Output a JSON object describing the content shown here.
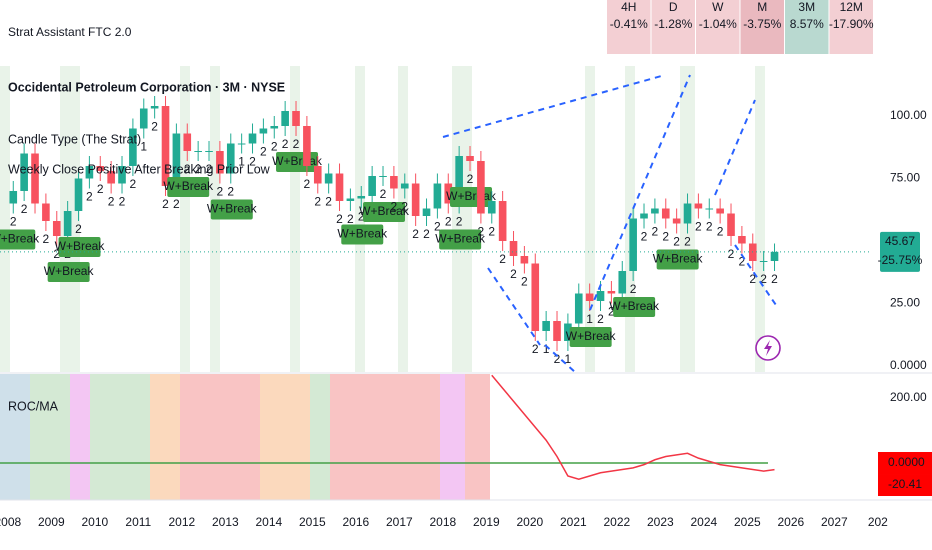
{
  "header": {
    "title": "Strat Assistant FTC 2.0"
  },
  "timeframes": [
    {
      "label": "4H",
      "value": "-0.41%",
      "color": "#f3cfd3"
    },
    {
      "label": "D",
      "value": "-1.28%",
      "color": "#f3cfd3"
    },
    {
      "label": "W",
      "value": "-1.04%",
      "color": "#f3cfd3"
    },
    {
      "label": "M",
      "value": "-3.75%",
      "color": "#eab9bf"
    },
    {
      "label": "3M",
      "value": "8.57%",
      "color": "#b9d9d0"
    },
    {
      "label": "12M",
      "value": "-17.90%",
      "color": "#f3cfd3"
    }
  ],
  "chart_data": {
    "type": "candlestick",
    "title": "Occidental Petroleum Corporation · 3M · NYSE",
    "legend": [
      "Candle Type (The Strat)",
      "Weekly Close Positive After Breaking Prior Low"
    ],
    "up_color": "#22ab94",
    "down_color": "#f7525f",
    "x": [
      2008,
      2008.25,
      2008.5,
      2008.75,
      2009,
      2009.25,
      2009.5,
      2009.75,
      2010,
      2010.25,
      2010.5,
      2010.75,
      2011,
      2011.25,
      2011.5,
      2011.75,
      2012,
      2012.25,
      2012.5,
      2012.75,
      2013,
      2013.25,
      2013.5,
      2013.75,
      2014,
      2014.25,
      2014.5,
      2014.75,
      2015,
      2015.25,
      2015.5,
      2015.75,
      2016,
      2016.25,
      2016.5,
      2016.75,
      2017,
      2017.25,
      2017.5,
      2017.75,
      2018,
      2018.25,
      2018.5,
      2018.75,
      2019,
      2019.25,
      2019.5,
      2019.75,
      2020,
      2020.25,
      2020.5,
      2020.75,
      2021,
      2021.25,
      2021.5,
      2021.75,
      2022,
      2022.25,
      2022.5,
      2022.75,
      2023,
      2023.25,
      2023.5,
      2023.75,
      2024,
      2024.25,
      2024.5,
      2024.75,
      2025,
      2025.25,
      2025.5
    ],
    "open": [
      65,
      70,
      85,
      65,
      58,
      52,
      62,
      75,
      80,
      78,
      73,
      80,
      95,
      103,
      104,
      72,
      93,
      86,
      86,
      86,
      77,
      89,
      89,
      93,
      95,
      96,
      102,
      96,
      80,
      73,
      77,
      66,
      67,
      68,
      76,
      76,
      71,
      73,
      60,
      63,
      73,
      65,
      84,
      82,
      61,
      66,
      50,
      44,
      41,
      14,
      18,
      10,
      17,
      29,
      26,
      30,
      29,
      38,
      59,
      61,
      63,
      59,
      57,
      65,
      63,
      63,
      61,
      52,
      49,
      42,
      42
    ],
    "high": [
      74,
      89,
      89,
      69,
      62,
      66,
      79,
      84,
      84,
      82,
      84,
      99,
      107,
      108,
      108,
      97,
      97,
      90,
      90,
      90,
      93,
      93,
      97,
      99,
      100,
      106,
      106,
      100,
      84,
      81,
      81,
      71,
      72,
      80,
      80,
      80,
      77,
      77,
      67,
      77,
      77,
      88,
      88,
      86,
      70,
      70,
      54,
      48,
      45,
      22,
      22,
      21,
      33,
      33,
      34,
      34,
      42,
      63,
      65,
      67,
      67,
      63,
      69,
      69,
      67,
      67,
      65,
      56,
      53,
      46,
      49
    ],
    "low": [
      61,
      66,
      61,
      54,
      48,
      48,
      58,
      71,
      74,
      69,
      69,
      76,
      91,
      99,
      68,
      68,
      82,
      82,
      82,
      73,
      73,
      85,
      85,
      89,
      91,
      92,
      92,
      76,
      69,
      69,
      62,
      62,
      63,
      64,
      72,
      67,
      67,
      56,
      56,
      59,
      61,
      61,
      78,
      57,
      57,
      46,
      40,
      37,
      10,
      10,
      6,
      6,
      13,
      22,
      22,
      25,
      25,
      34,
      55,
      57,
      55,
      53,
      53,
      59,
      59,
      57,
      48,
      45,
      38,
      38,
      38
    ],
    "close": [
      70,
      85,
      65,
      58,
      52,
      62,
      75,
      80,
      78,
      73,
      80,
      95,
      103,
      104,
      72,
      93,
      86,
      86,
      86,
      77,
      89,
      89,
      93,
      95,
      96,
      102,
      96,
      80,
      73,
      77,
      66,
      67,
      68,
      76,
      76,
      71,
      73,
      60,
      63,
      73,
      65,
      84,
      82,
      61,
      66,
      50,
      44,
      41,
      14,
      18,
      10,
      17,
      29,
      26,
      30,
      29,
      38,
      59,
      61,
      63,
      59,
      57,
      65,
      63,
      63,
      61,
      52,
      49,
      42,
      42,
      45.67
    ],
    "strat_numbers": [
      "2",
      "2",
      null,
      "2",
      "2",
      "2",
      "2",
      "2",
      "2",
      "2",
      "2",
      "2",
      "1",
      "2",
      "2",
      "2",
      "2",
      "2",
      "2",
      "2",
      "2",
      "1",
      "2",
      "2",
      "2",
      "2",
      "2",
      "2",
      "2",
      "2",
      "2",
      "2",
      "2",
      "2",
      "2",
      "2",
      "2",
      "2",
      "2",
      "2",
      "2",
      "2",
      "2",
      "2",
      "2",
      "2",
      "2",
      "2",
      "2",
      "1",
      "2",
      "1",
      "3",
      "1",
      "2",
      "2",
      "2",
      "2",
      "2",
      "2",
      "2",
      "2",
      "2",
      "2",
      "2",
      "2",
      "2",
      "2",
      "2",
      "2",
      "2"
    ],
    "break_labels": [
      "W+Break",
      null,
      null,
      null,
      null,
      "W+Break",
      "W+Break",
      null,
      null,
      null,
      null,
      null,
      null,
      null,
      null,
      null,
      "W+Break",
      null,
      null,
      null,
      "W+Break",
      null,
      null,
      null,
      null,
      null,
      "W+Break",
      null,
      null,
      null,
      null,
      null,
      "W+Break",
      null,
      "W+Break",
      null,
      null,
      null,
      null,
      null,
      null,
      "W+Break",
      "W+Break",
      null,
      null,
      null,
      null,
      null,
      null,
      null,
      null,
      null,
      null,
      "W+Break",
      null,
      null,
      null,
      "W+Break",
      null,
      null,
      null,
      "W+Break",
      null,
      null,
      null,
      null,
      null,
      null,
      null,
      null,
      null
    ],
    "xlim": [
      2007.82,
      2027.82
    ],
    "xticks": [
      2008,
      2009,
      2010,
      2011,
      2012,
      2013,
      2014,
      2015,
      2016,
      2017,
      2018,
      2019,
      2020,
      2021,
      2022,
      2023,
      2024,
      2025,
      2026,
      2027,
      {
        "value": 2028,
        "label": "202"
      }
    ],
    "ylim": [
      -2.4,
      116.4
    ],
    "yticks": [
      {
        "value": 100,
        "label": "100.00"
      },
      {
        "value": 75,
        "label": "75.00"
      },
      {
        "value": 25,
        "label": "25.00"
      },
      {
        "value": 0,
        "label": "0.0000"
      }
    ],
    "last_price": 45.67,
    "last_price_label": "45.67",
    "last_change": -25.75,
    "last_change_label": "-25.75%",
    "roc": {
      "name": "ROC/MA",
      "color": "#f23645",
      "x": [
        2019,
        2019.25,
        2019.5,
        2019.75,
        2020,
        2020.25,
        2020.5,
        2020.75,
        2021,
        2021.25,
        2021.5,
        2021.75,
        2022,
        2022.25,
        2022.5,
        2022.75,
        2023,
        2023.25,
        2023.5,
        2023.75,
        2024,
        2024.25,
        2024.5,
        2024.75,
        2025,
        2025.25,
        2025.5
      ],
      "values": [
        270,
        230,
        190,
        150,
        110,
        70,
        20,
        -40,
        -50,
        -40,
        -30,
        -25,
        -20,
        -15,
        -5,
        10,
        20,
        25,
        30,
        15,
        5,
        -5,
        -10,
        -15,
        -20,
        -25,
        -20.41
      ],
      "ylim": [
        -113.8,
        273.8
      ],
      "yticks": [
        {
          "value": 200,
          "label": "200.00"
        }
      ],
      "zero_label": {
        "value": 0,
        "label": "0.0000"
      },
      "last_label": "-20.41"
    }
  }
}
